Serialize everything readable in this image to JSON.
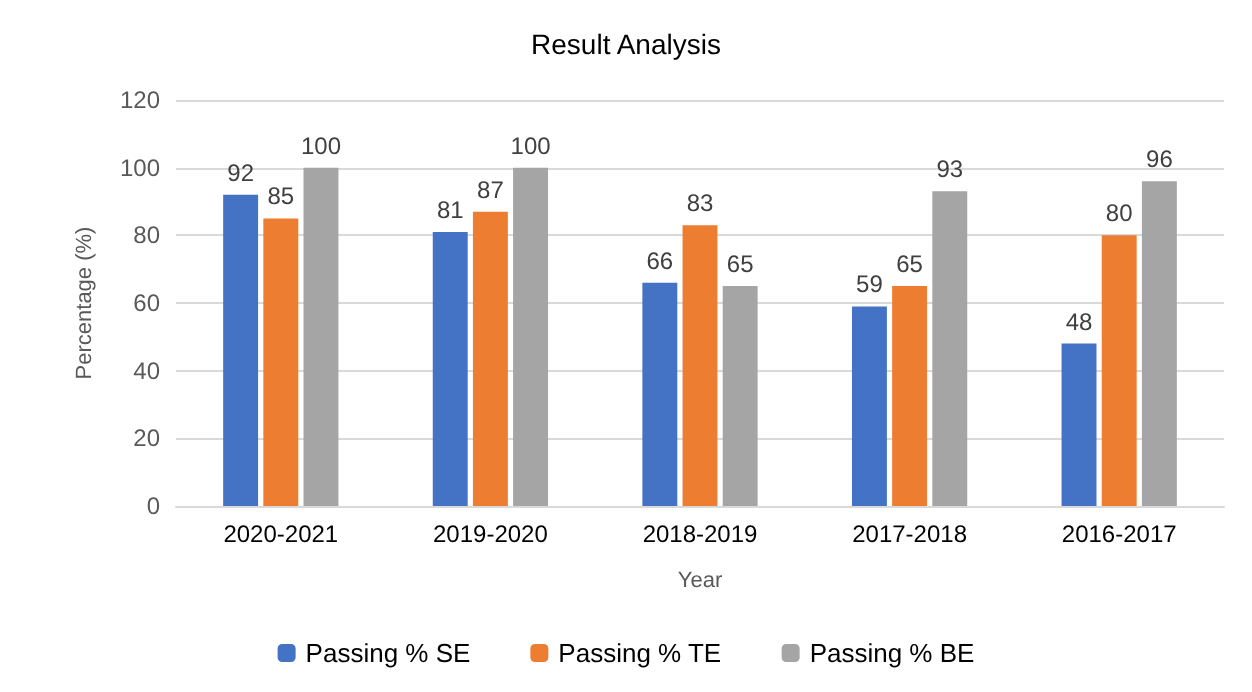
{
  "chart_data": {
    "type": "bar",
    "title": "Result Analysis",
    "xlabel": "Year",
    "ylabel": "Percentage (%)",
    "categories": [
      "2020-2021",
      "2019-2020",
      "2018-2019",
      "2017-2018",
      "2016-2017"
    ],
    "series": [
      {
        "name": "Passing % SE",
        "color": "#4472c4",
        "values": [
          92,
          81,
          66,
          59,
          48
        ]
      },
      {
        "name": "Passing % TE",
        "color": "#ed7d31",
        "values": [
          85,
          87,
          83,
          65,
          80
        ]
      },
      {
        "name": "Passing % BE",
        "color": "#a5a5a5",
        "values": [
          100,
          100,
          65,
          93,
          96
        ]
      }
    ],
    "ylim": [
      0,
      120
    ],
    "yticks": [
      0,
      20,
      40,
      60,
      80,
      100,
      120
    ],
    "grid": "y",
    "legend": "bottom",
    "data_labels": true
  }
}
